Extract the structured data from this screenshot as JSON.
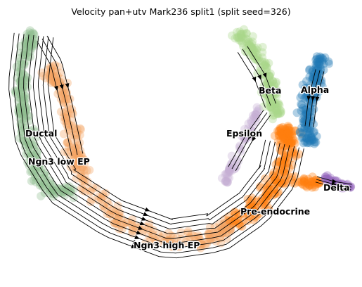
{
  "chart_data": {
    "type": "scatter",
    "title": "Velocity pan+utv Mark236 split1 (split seed=326)",
    "xlabel": "",
    "ylabel": "",
    "grid": false,
    "axes_visible": false,
    "overlay": "velocity streamlines with arrowheads",
    "clusters": [
      {
        "name": "Ductal",
        "color": "#8fbc8f",
        "label": "Ductal"
      },
      {
        "name": "Ngn3 low EP",
        "color": "#8fbc8f",
        "label": "Ngn3 low EP"
      },
      {
        "name": "Ngn3 high EP",
        "color": "#f4a460",
        "label": "Ngn3 high EP"
      },
      {
        "name": "Pre-endocrine",
        "color": "#ff7f0e",
        "label": "Pre-endocrine"
      },
      {
        "name": "Beta",
        "color": "#a8d68a",
        "label": "Beta"
      },
      {
        "name": "Alpha",
        "color": "#1f77b4",
        "label": "Alpha"
      },
      {
        "name": "Epsilon",
        "color": "#c5b0d5",
        "label": "Epsilon"
      },
      {
        "name": "Delta",
        "color": "#9467bd",
        "label": "Delta"
      }
    ]
  }
}
